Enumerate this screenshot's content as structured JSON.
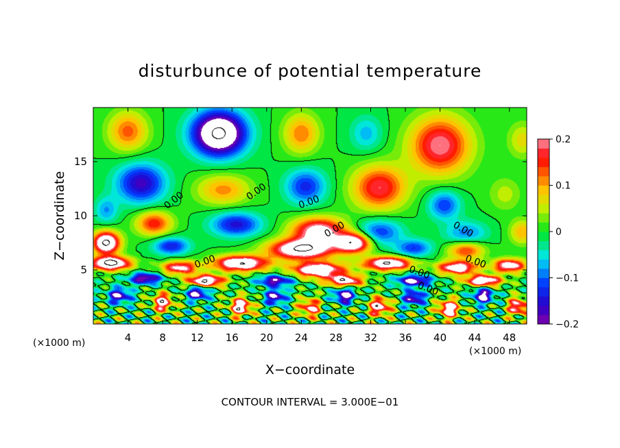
{
  "chart_data": {
    "type": "heatmap",
    "title": "disturbunce of potential temperature",
    "xlabel": "X−coordinate",
    "ylabel": "Z−coordinate",
    "x_unit_left": "(×1000 m)",
    "x_unit_right": "(×1000 m)",
    "footer": "CONTOUR INTERVAL = 3.000E−01",
    "xlim": [
      0,
      50
    ],
    "ylim": [
      0,
      20
    ],
    "x_ticks": [
      4,
      8,
      12,
      16,
      20,
      24,
      28,
      32,
      36,
      40,
      44,
      48
    ],
    "y_ticks": [
      5,
      10,
      15
    ],
    "colorbar": {
      "range": [
        -0.2,
        0.2
      ],
      "ticks": [
        0.2,
        0.1,
        0,
        -0.1,
        -0.2
      ],
      "tick_labels": [
        "0.2",
        "0.1",
        "0",
        "−0.1",
        "−0.2"
      ]
    },
    "contour_labels": [
      {
        "text": "0.00",
        "x": 9.5,
        "y": 11.2,
        "angle": -38
      },
      {
        "text": "0.00",
        "x": 19,
        "y": 12.0,
        "angle": -35
      },
      {
        "text": "0.00",
        "x": 25,
        "y": 11.0,
        "angle": -20
      },
      {
        "text": "0.00",
        "x": 28,
        "y": 8.5,
        "angle": -30
      },
      {
        "text": "0.00",
        "x": 42.5,
        "y": 8.5,
        "angle": 30
      },
      {
        "text": "0.00",
        "x": 44,
        "y": 5.5,
        "angle": 20
      },
      {
        "text": "0.00",
        "x": 37.5,
        "y": 4.5,
        "angle": 20
      },
      {
        "text": "0.00",
        "x": 38.5,
        "y": 3.0,
        "angle": 20
      },
      {
        "text": "0.00",
        "x": 13,
        "y": 5.5,
        "angle": -20
      }
    ],
    "features": [
      {
        "x": 4,
        "z": 17.8,
        "v": 0.13,
        "sx": 2.2,
        "sz": 1.8
      },
      {
        "x": 14.5,
        "z": 17.6,
        "v": -0.32,
        "sx": 3.0,
        "sz": 2.0
      },
      {
        "x": 24,
        "z": 17.6,
        "v": 0.12,
        "sx": 2.0,
        "sz": 1.8
      },
      {
        "x": 31.5,
        "z": 17.6,
        "v": -0.07,
        "sx": 1.8,
        "sz": 1.6
      },
      {
        "x": 40,
        "z": 16.5,
        "v": 0.2,
        "sx": 3.4,
        "sz": 2.6
      },
      {
        "x": 49.5,
        "z": 17.0,
        "v": 0.07,
        "sx": 1.6,
        "sz": 1.6
      },
      {
        "x": 5.5,
        "z": 13.0,
        "v": -0.17,
        "sx": 2.8,
        "sz": 1.8
      },
      {
        "x": 15,
        "z": 12.4,
        "v": 0.11,
        "sx": 3.0,
        "sz": 1.4
      },
      {
        "x": 24.5,
        "z": 12.7,
        "v": -0.13,
        "sx": 2.3,
        "sz": 1.6
      },
      {
        "x": 33,
        "z": 12.6,
        "v": 0.18,
        "sx": 3.0,
        "sz": 2.0
      },
      {
        "x": 40.5,
        "z": 11.0,
        "v": -0.12,
        "sx": 1.8,
        "sz": 1.3
      },
      {
        "x": 47.5,
        "z": 12.0,
        "v": 0.05,
        "sx": 1.8,
        "sz": 1.5
      },
      {
        "x": 1.5,
        "z": 10.5,
        "v": -0.08,
        "sx": 1.3,
        "sz": 1.2
      },
      {
        "x": 7,
        "z": 9.3,
        "v": 0.16,
        "sx": 2.0,
        "sz": 1.1
      },
      {
        "x": 16.5,
        "z": 9.2,
        "v": -0.15,
        "sx": 2.8,
        "sz": 1.1
      },
      {
        "x": 26,
        "z": 8.6,
        "v": 0.24,
        "sx": 3.0,
        "sz": 1.2
      },
      {
        "x": 33,
        "z": 8.5,
        "v": -0.12,
        "sx": 2.6,
        "sz": 1.2
      },
      {
        "x": 43,
        "z": 8.4,
        "v": -0.09,
        "sx": 2.4,
        "sz": 1.1
      },
      {
        "x": 49.5,
        "z": 8.5,
        "v": 0.1,
        "sx": 1.4,
        "sz": 1.1
      },
      {
        "x": 1.5,
        "z": 7.5,
        "v": 0.32,
        "sx": 1.5,
        "sz": 1.0
      },
      {
        "x": 9,
        "z": 7.2,
        "v": -0.14,
        "sx": 2.0,
        "sz": 0.8
      },
      {
        "x": 24,
        "z": 6.9,
        "v": 0.3,
        "sx": 3.6,
        "sz": 0.9
      },
      {
        "x": 30,
        "z": 7.5,
        "v": 0.28,
        "sx": 2.0,
        "sz": 0.9
      },
      {
        "x": 37,
        "z": 7.0,
        "v": -0.12,
        "sx": 2.0,
        "sz": 0.8
      },
      {
        "x": 43,
        "z": 6.8,
        "v": 0.15,
        "sx": 2.0,
        "sz": 0.8
      },
      {
        "x": 2,
        "z": 5.6,
        "v": 0.33,
        "sx": 2.2,
        "sz": 0.6
      },
      {
        "x": 10,
        "z": 5.2,
        "v": 0.22,
        "sx": 2.0,
        "sz": 0.6
      },
      {
        "x": 17,
        "z": 5.6,
        "v": 0.3,
        "sx": 3.0,
        "sz": 0.7
      },
      {
        "x": 26,
        "z": 5.0,
        "v": 0.28,
        "sx": 3.0,
        "sz": 0.7
      },
      {
        "x": 34,
        "z": 5.6,
        "v": 0.3,
        "sx": 2.6,
        "sz": 0.6
      },
      {
        "x": 42,
        "z": 5.2,
        "v": 0.26,
        "sx": 2.2,
        "sz": 0.6
      },
      {
        "x": 48,
        "z": 5.4,
        "v": 0.25,
        "sx": 1.8,
        "sz": 0.6
      },
      {
        "x": 6,
        "z": 4.2,
        "v": -0.22,
        "sx": 1.8,
        "sz": 0.5
      },
      {
        "x": 13,
        "z": 4.0,
        "v": 0.3,
        "sx": 2.0,
        "sz": 0.5
      },
      {
        "x": 21,
        "z": 4.0,
        "v": -0.2,
        "sx": 2.0,
        "sz": 0.5
      },
      {
        "x": 29,
        "z": 4.0,
        "v": 0.26,
        "sx": 2.0,
        "sz": 0.5
      },
      {
        "x": 37,
        "z": 4.0,
        "v": -0.22,
        "sx": 2.0,
        "sz": 0.5
      },
      {
        "x": 45,
        "z": 4.0,
        "v": 0.28,
        "sx": 2.0,
        "sz": 0.5
      },
      {
        "x": 3,
        "z": 2.6,
        "v": -0.2,
        "sx": 1.3,
        "sz": 0.7
      },
      {
        "x": 8,
        "z": 2.0,
        "v": 0.24,
        "sx": 1.1,
        "sz": 0.8
      },
      {
        "x": 12,
        "z": 2.8,
        "v": -0.22,
        "sx": 1.2,
        "sz": 0.6
      },
      {
        "x": 17,
        "z": 1.6,
        "v": 0.26,
        "sx": 1.2,
        "sz": 0.8
      },
      {
        "x": 21,
        "z": 2.5,
        "v": -0.2,
        "sx": 1.2,
        "sz": 0.7
      },
      {
        "x": 25,
        "z": 1.5,
        "v": 0.2,
        "sx": 1.2,
        "sz": 0.8
      },
      {
        "x": 29,
        "z": 2.6,
        "v": -0.22,
        "sx": 1.2,
        "sz": 0.7
      },
      {
        "x": 33,
        "z": 1.6,
        "v": 0.24,
        "sx": 1.2,
        "sz": 0.8
      },
      {
        "x": 37,
        "z": 2.4,
        "v": -0.2,
        "sx": 1.2,
        "sz": 0.7
      },
      {
        "x": 41,
        "z": 1.4,
        "v": 0.26,
        "sx": 1.2,
        "sz": 0.8
      },
      {
        "x": 45,
        "z": 2.6,
        "v": -0.22,
        "sx": 1.2,
        "sz": 0.7
      },
      {
        "x": 49,
        "z": 1.6,
        "v": 0.22,
        "sx": 1.1,
        "sz": 0.8
      }
    ]
  }
}
